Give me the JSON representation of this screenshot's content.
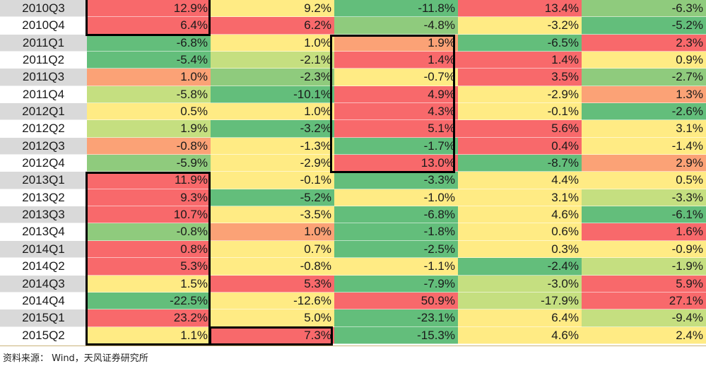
{
  "colors": {
    "label_gray": "#d9d9d9",
    "label_white": "#ffffff",
    "red": "#f8696b",
    "orange": "#fba276",
    "yellow": "#ffeb84",
    "light_green": "#c5df80",
    "mid_green": "#8fcb7d",
    "green": "#63be7b"
  },
  "table": {
    "rows": [
      {
        "period": "2010Q3",
        "label_bg": "label_gray",
        "cells": [
          [
            "12.9%",
            "red"
          ],
          [
            "9.2%",
            "yellow"
          ],
          [
            "-11.8%",
            "green"
          ],
          [
            "13.4%",
            "red"
          ],
          [
            "-6.3%",
            "mid_green"
          ]
        ]
      },
      {
        "period": "2010Q4",
        "label_bg": "label_white",
        "cells": [
          [
            "6.4%",
            "red"
          ],
          [
            "6.2%",
            "red"
          ],
          [
            "-4.8%",
            "mid_green"
          ],
          [
            "-3.2%",
            "yellow"
          ],
          [
            "-5.2%",
            "green"
          ]
        ]
      },
      {
        "period": "2011Q1",
        "label_bg": "label_gray",
        "cells": [
          [
            "-6.8%",
            "green"
          ],
          [
            "1.0%",
            "yellow"
          ],
          [
            "1.9%",
            "orange"
          ],
          [
            "-6.5%",
            "green"
          ],
          [
            "2.3%",
            "red"
          ]
        ]
      },
      {
        "period": "2011Q2",
        "label_bg": "label_white",
        "cells": [
          [
            "-5.4%",
            "green"
          ],
          [
            "-2.1%",
            "light_green"
          ],
          [
            "1.4%",
            "red"
          ],
          [
            "1.4%",
            "red"
          ],
          [
            "0.9%",
            "yellow"
          ]
        ]
      },
      {
        "period": "2011Q3",
        "label_bg": "label_gray",
        "cells": [
          [
            "1.0%",
            "orange"
          ],
          [
            "-2.3%",
            "mid_green"
          ],
          [
            "-0.7%",
            "yellow"
          ],
          [
            "3.5%",
            "red"
          ],
          [
            "-2.7%",
            "mid_green"
          ]
        ]
      },
      {
        "period": "2011Q4",
        "label_bg": "label_white",
        "cells": [
          [
            "-5.8%",
            "light_green"
          ],
          [
            "-10.1%",
            "green"
          ],
          [
            "4.9%",
            "red"
          ],
          [
            "-2.9%",
            "yellow"
          ],
          [
            "1.3%",
            "orange"
          ]
        ]
      },
      {
        "period": "2012Q1",
        "label_bg": "label_gray",
        "cells": [
          [
            "0.5%",
            "yellow"
          ],
          [
            "1.0%",
            "yellow"
          ],
          [
            "4.3%",
            "red"
          ],
          [
            "-0.1%",
            "yellow"
          ],
          [
            "-2.6%",
            "green"
          ]
        ]
      },
      {
        "period": "2012Q2",
        "label_bg": "label_white",
        "cells": [
          [
            "1.9%",
            "light_green"
          ],
          [
            "-3.2%",
            "green"
          ],
          [
            "5.1%",
            "red"
          ],
          [
            "5.6%",
            "red"
          ],
          [
            "3.1%",
            "yellow"
          ]
        ]
      },
      {
        "period": "2012Q3",
        "label_bg": "label_gray",
        "cells": [
          [
            "-0.8%",
            "orange"
          ],
          [
            "-1.3%",
            "yellow"
          ],
          [
            "-1.7%",
            "green"
          ],
          [
            "0.4%",
            "red"
          ],
          [
            "-1.4%",
            "yellow"
          ]
        ]
      },
      {
        "period": "2012Q4",
        "label_bg": "label_white",
        "cells": [
          [
            "-5.9%",
            "mid_green"
          ],
          [
            "-2.9%",
            "yellow"
          ],
          [
            "13.0%",
            "red"
          ],
          [
            "-8.7%",
            "green"
          ],
          [
            "2.9%",
            "orange"
          ]
        ]
      },
      {
        "period": "2013Q1",
        "label_bg": "label_gray",
        "cells": [
          [
            "11.9%",
            "red"
          ],
          [
            "-0.1%",
            "yellow"
          ],
          [
            "-3.3%",
            "green"
          ],
          [
            "4.4%",
            "yellow"
          ],
          [
            "0.5%",
            "yellow"
          ]
        ]
      },
      {
        "period": "2013Q2",
        "label_bg": "label_white",
        "cells": [
          [
            "9.3%",
            "red"
          ],
          [
            "-5.2%",
            "green"
          ],
          [
            "-1.0%",
            "yellow"
          ],
          [
            "3.1%",
            "yellow"
          ],
          [
            "-3.3%",
            "light_green"
          ]
        ]
      },
      {
        "period": "2013Q3",
        "label_bg": "label_gray",
        "cells": [
          [
            "10.7%",
            "red"
          ],
          [
            "-3.5%",
            "yellow"
          ],
          [
            "-6.8%",
            "green"
          ],
          [
            "4.6%",
            "yellow"
          ],
          [
            "-6.1%",
            "green"
          ]
        ]
      },
      {
        "period": "2013Q4",
        "label_bg": "label_white",
        "cells": [
          [
            "-0.8%",
            "mid_green"
          ],
          [
            "1.0%",
            "orange"
          ],
          [
            "-1.8%",
            "green"
          ],
          [
            "0.6%",
            "yellow"
          ],
          [
            "1.6%",
            "red"
          ]
        ]
      },
      {
        "period": "2014Q1",
        "label_bg": "label_gray",
        "cells": [
          [
            "0.8%",
            "red"
          ],
          [
            "0.7%",
            "yellow"
          ],
          [
            "-2.5%",
            "green"
          ],
          [
            "0.3%",
            "yellow"
          ],
          [
            "-0.9%",
            "yellow"
          ]
        ]
      },
      {
        "period": "2014Q2",
        "label_bg": "label_white",
        "cells": [
          [
            "5.3%",
            "red"
          ],
          [
            "-0.8%",
            "yellow"
          ],
          [
            "-1.1%",
            "yellow"
          ],
          [
            "-2.4%",
            "green"
          ],
          [
            "-1.9%",
            "light_green"
          ]
        ]
      },
      {
        "period": "2014Q3",
        "label_bg": "label_gray",
        "cells": [
          [
            "1.5%",
            "yellow"
          ],
          [
            "5.3%",
            "red"
          ],
          [
            "-7.9%",
            "green"
          ],
          [
            "-3.0%",
            "light_green"
          ],
          [
            "5.9%",
            "red"
          ]
        ]
      },
      {
        "period": "2014Q4",
        "label_bg": "label_white",
        "cells": [
          [
            "-22.5%",
            "green"
          ],
          [
            "-12.6%",
            "yellow"
          ],
          [
            "50.9%",
            "red"
          ],
          [
            "-17.9%",
            "light_green"
          ],
          [
            "27.1%",
            "red"
          ]
        ]
      },
      {
        "period": "2015Q1",
        "label_bg": "label_gray",
        "cells": [
          [
            "23.2%",
            "red"
          ],
          [
            "5.0%",
            "yellow"
          ],
          [
            "-23.1%",
            "green"
          ],
          [
            "6.4%",
            "yellow"
          ],
          [
            "-9.4%",
            "light_green"
          ]
        ]
      },
      {
        "period": "2015Q2",
        "label_bg": "label_white",
        "cells": [
          [
            "1.1%",
            "yellow"
          ],
          [
            "7.3%",
            "red"
          ],
          [
            "-15.3%",
            "green"
          ],
          [
            "4.6%",
            "yellow"
          ],
          [
            "2.4%",
            "yellow"
          ]
        ]
      }
    ]
  },
  "source_text": "资料来源： Wind，天风证券研究所"
}
